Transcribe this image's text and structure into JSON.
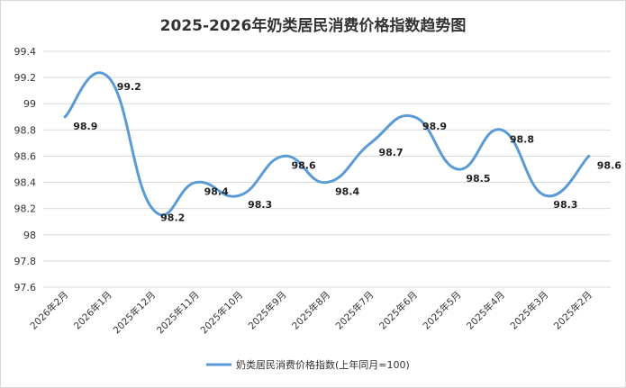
{
  "chart_data": {
    "type": "line",
    "title": "2025-2026年奶类居民消费价格指数趋势图",
    "categories": [
      "2026年2月",
      "2026年1月",
      "2025年12月",
      "2025年11月",
      "2025年10月",
      "2025年9月",
      "2025年8月",
      "2025年7月",
      "2025年6月",
      "2025年5月",
      "2025年4月",
      "2025年3月",
      "2025年2月"
    ],
    "series": [
      {
        "name": "奶类居民消费价格指数(上年同月=100)",
        "values": [
          98.9,
          99.2,
          98.2,
          98.4,
          98.3,
          98.6,
          98.4,
          98.7,
          98.9,
          98.5,
          98.8,
          98.3,
          98.6
        ],
        "color": "#5b9bd5"
      }
    ],
    "yticks": [
      "99.4",
      "99.2",
      "99",
      "98.8",
      "98.6",
      "98.4",
      "98.2",
      "98",
      "97.8",
      "97.6"
    ],
    "ylim": [
      97.6,
      99.4
    ],
    "grid": true,
    "legend": "bottom"
  }
}
